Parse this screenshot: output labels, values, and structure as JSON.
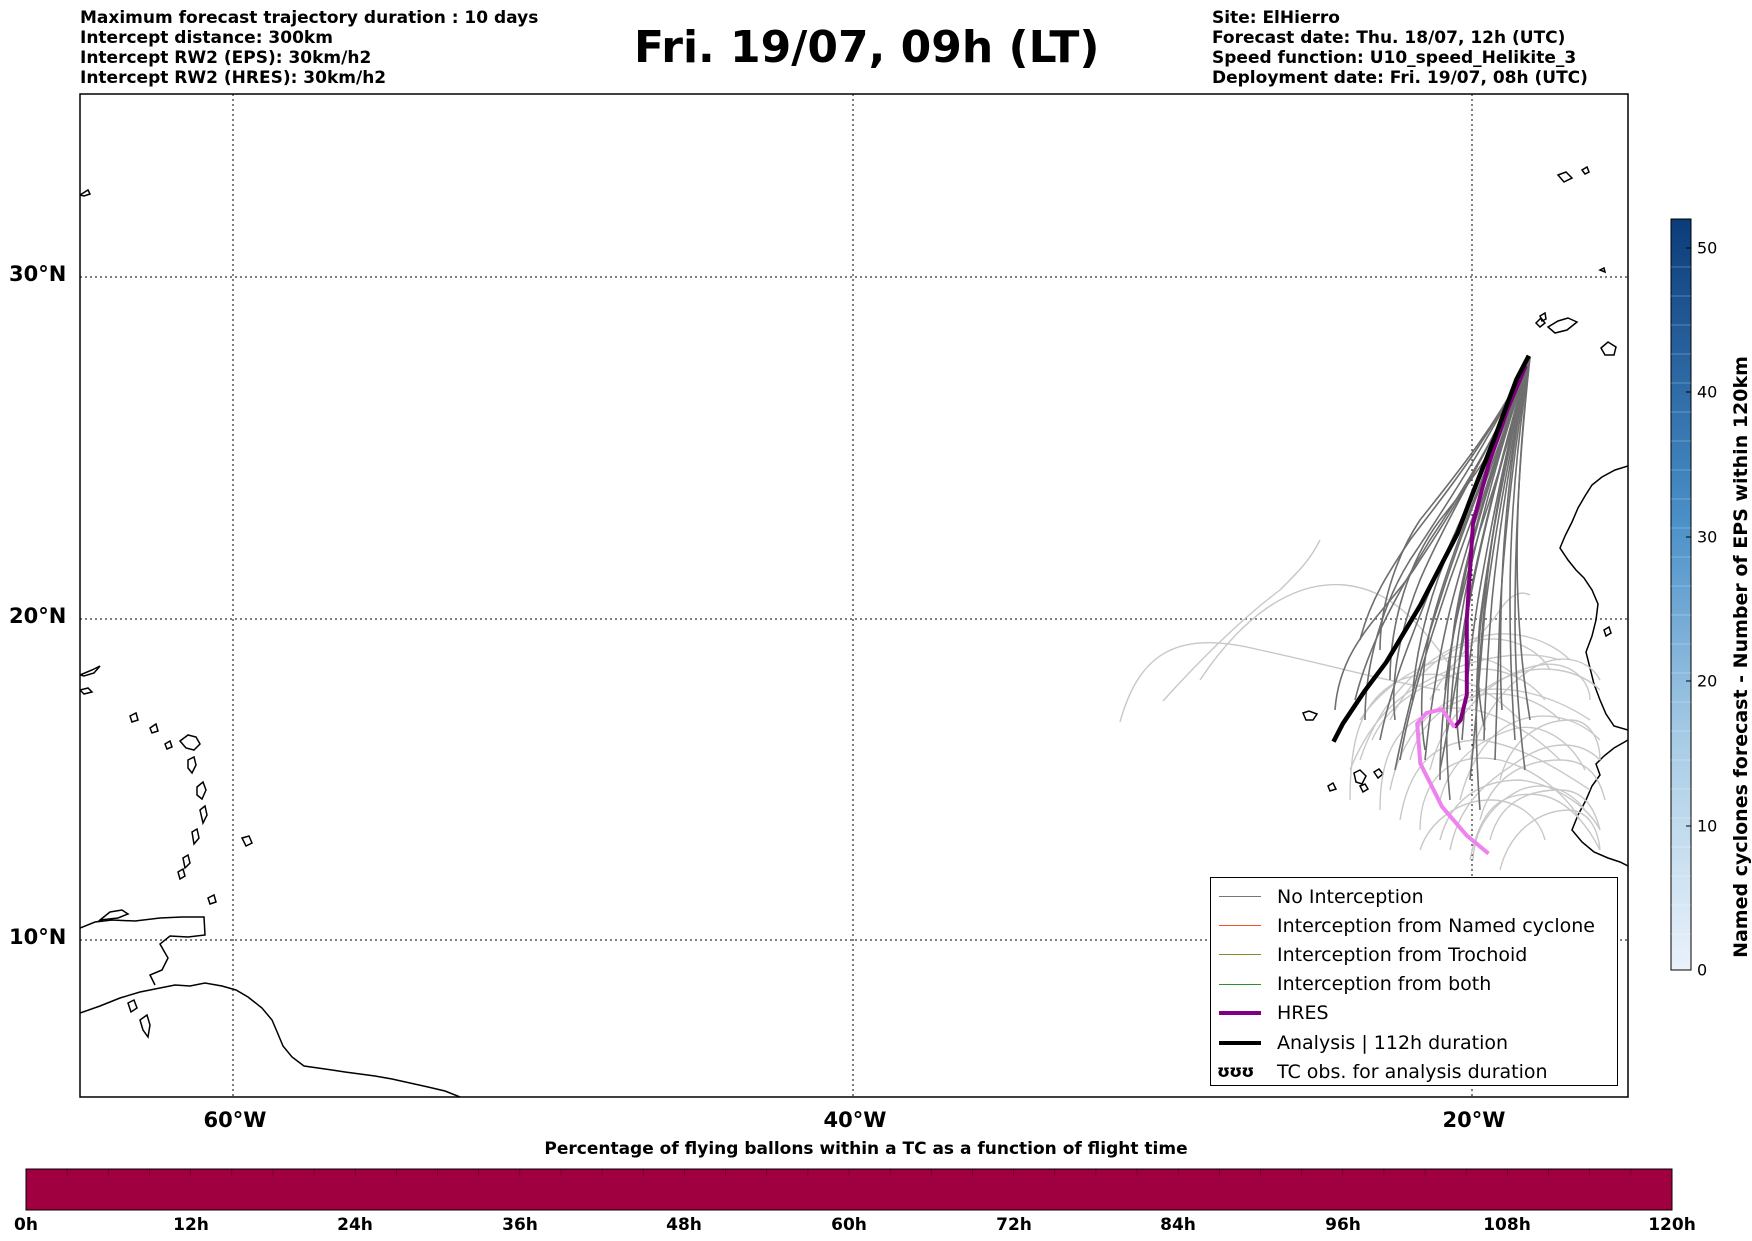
{
  "header": {
    "title": "Fri. 19/07, 09h (LT)",
    "left_lines": [
      "Maximum forecast trajectory duration : 10 days",
      "Intercept distance: 300km",
      "Intercept RW2 (EPS):  30km/h2",
      "Intercept RW2 (HRES): 30km/h2"
    ],
    "right_lines": [
      "Site: ElHierro",
      "Forecast date: Thu. 18/07, 12h (UTC)",
      "Speed function: U10_speed_Helikite_3",
      "Deployment date: Fri. 19/07, 08h (UTC)"
    ]
  },
  "map": {
    "lat_labels": [
      "30°N",
      "20°N",
      "10°N"
    ],
    "lon_labels": [
      "60°W",
      "40°W",
      "20°W"
    ],
    "lon_range": [
      -65,
      -15
    ],
    "lat_range": [
      5.5,
      35
    ],
    "gridlines_lon": [
      -60,
      -40,
      -20
    ],
    "gridlines_lat": [
      10,
      20,
      30
    ],
    "analysis_track": [
      [
        -18.2,
        27.7
      ],
      [
        -18.6,
        27.0
      ],
      [
        -19.3,
        25.3
      ],
      [
        -20.0,
        23.7
      ],
      [
        -20.5,
        22.5
      ],
      [
        -21.7,
        20.4
      ],
      [
        -22.8,
        18.8
      ],
      [
        -23.5,
        18.0
      ],
      [
        -24.2,
        17.1
      ],
      [
        -24.5,
        16.6
      ]
    ],
    "hres_track": [
      [
        -18.3,
        27.4
      ],
      [
        -18.9,
        26.1
      ],
      [
        -19.5,
        24.5
      ],
      [
        -20.0,
        22.8
      ],
      [
        -20.2,
        20.0
      ],
      [
        -20.2,
        17.9
      ],
      [
        -20.4,
        17.2
      ],
      [
        -20.6,
        17.0
      ]
    ],
    "hres_extension": [
      [
        -20.6,
        17.0
      ],
      [
        -21.0,
        17.5
      ],
      [
        -21.5,
        17.4
      ],
      [
        -21.8,
        17.1
      ],
      [
        -21.7,
        16.0
      ],
      [
        -21.0,
        14.8
      ],
      [
        -20.2,
        14.0
      ],
      [
        -19.5,
        13.5
      ]
    ]
  },
  "legend": {
    "items": [
      {
        "label": "No Interception",
        "color": "#777777"
      },
      {
        "label": "Interception from Named cyclone",
        "color": "#e8582a"
      },
      {
        "label": "Interception from Trochoid",
        "color": "#8a8a2a"
      },
      {
        "label": "Interception from both",
        "color": "#2f8f2f"
      },
      {
        "label": "HRES",
        "color": "#800080"
      },
      {
        "label": "Analysis | 112h duration",
        "color": "#000000"
      },
      {
        "label": "TC obs. for analysis duration",
        "symbol": "ʊʊʊ"
      }
    ]
  },
  "colorbar_vertical": {
    "label": "Named cyclones forecast - Number of EPS within 120km",
    "ticks": [
      "0",
      "10",
      "20",
      "30",
      "40",
      "50"
    ],
    "range": [
      0,
      52
    ],
    "colors": [
      "#e9f1fa",
      "#0b3c7a"
    ]
  },
  "colorbar_horizontal": {
    "title": "Percentage of flying ballons within a TC as a function of flight time",
    "ticks": [
      "0h",
      "12h",
      "24h",
      "36h",
      "48h",
      "60h",
      "72h",
      "84h",
      "96h",
      "108h",
      "120h"
    ],
    "fill_color": "#a10040"
  }
}
